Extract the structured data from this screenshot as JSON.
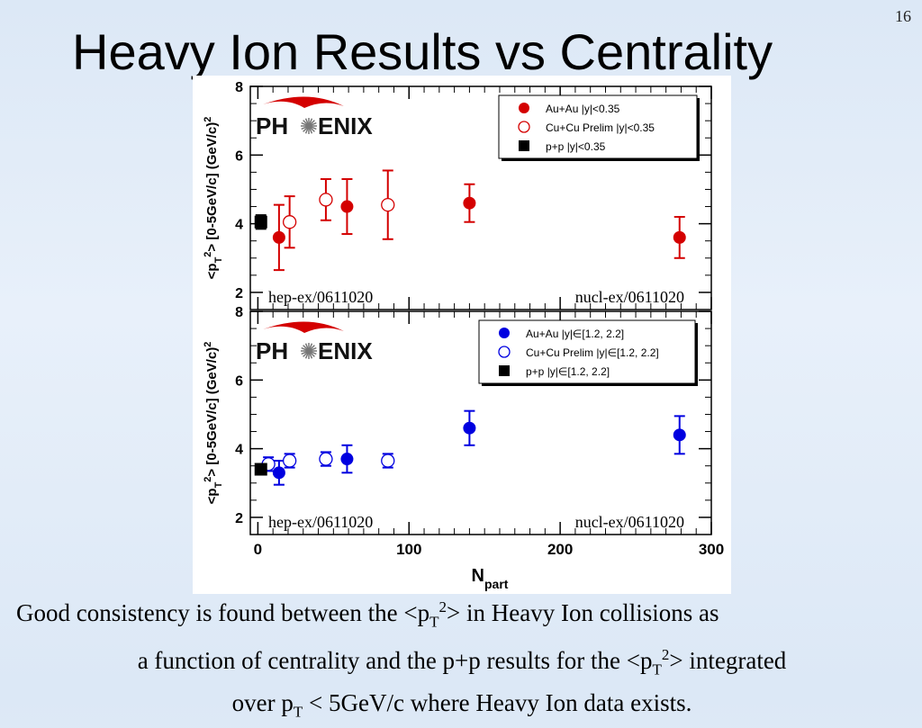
{
  "slide": {
    "number": "16",
    "title": "Heavy Ion Results vs Centrality",
    "caption": {
      "line1": "Good consistency is found between the <p",
      "line1_sub": "T",
      "line1_sup": "2",
      "line1_end": "> in Heavy Ion collisions as",
      "line2": "a function of centrality and the p+p results for the <p",
      "line2_sub": "T",
      "line2_sup": "2",
      "line2_end": "> integrated",
      "line3": "over p",
      "line3_sub": "T",
      "line3_end": " < 5GeV/c where Heavy Ion data exists."
    }
  },
  "chart_data": [
    {
      "type": "scatter",
      "logo": "PHENIX",
      "ylabel": "<p_T^2> [0-5GeV/c] (GeV/c)^2",
      "ylabel_main": "<p",
      "ylabel_sub": "T",
      "ylabel_sup": "2",
      "ylabel_end": "> [0-5GeV/c] (GeV/c)",
      "ylabel_sup2": "2",
      "xlim": [
        -5,
        300
      ],
      "ylim": [
        1.5,
        8
      ],
      "yticks": [
        2,
        4,
        6,
        8
      ],
      "references": [
        "hep-ex/0611020",
        "nucl-ex/0611020"
      ],
      "legend_position": "top-right",
      "series": [
        {
          "name": "Au+Au |y|<0.35",
          "marker": "filled-circle",
          "color": "#d40000",
          "points": [
            {
              "x": 14,
              "y": 3.6,
              "err": 0.95
            },
            {
              "x": 59,
              "y": 4.5,
              "err": 0.8
            },
            {
              "x": 140,
              "y": 4.6,
              "err": 0.55
            },
            {
              "x": 279,
              "y": 3.6,
              "err": 0.6
            }
          ]
        },
        {
          "name": "Cu+Cu Prelim |y|<0.35",
          "marker": "open-circle",
          "color": "#d40000",
          "points": [
            {
              "x": 21,
              "y": 4.05,
              "err": 0.75
            },
            {
              "x": 45,
              "y": 4.7,
              "err": 0.6
            },
            {
              "x": 86,
              "y": 4.55,
              "err": 1.0
            }
          ]
        },
        {
          "name": "p+p |y|<0.35",
          "marker": "filled-square",
          "color": "#000000",
          "points": [
            {
              "x": 2,
              "y": 4.05,
              "err": 0.2
            }
          ]
        }
      ]
    },
    {
      "type": "scatter",
      "logo": "PHENIX",
      "ylabel": "<p_T^2> [0-5GeV/c] (GeV/c)^2",
      "ylabel_main": "<p",
      "ylabel_sub": "T",
      "ylabel_sup": "2",
      "ylabel_end": "> [0-5GeV/c] (GeV/c)",
      "ylabel_sup2": "2",
      "xlabel": "N_part",
      "xlabel_main": "N",
      "xlabel_sub": "part",
      "xlim": [
        -5,
        300
      ],
      "ylim": [
        1.5,
        8
      ],
      "yticks": [
        2,
        4,
        6,
        8
      ],
      "xticks": [
        0,
        100,
        200,
        300
      ],
      "references": [
        "hep-ex/0611020",
        "nucl-ex/0611020"
      ],
      "legend_position": "top-right",
      "series": [
        {
          "name": "Au+Au |y|∈[1.2, 2.2]",
          "marker": "filled-circle",
          "color": "#0000e0",
          "points": [
            {
              "x": 14,
              "y": 3.3,
              "err": 0.35
            },
            {
              "x": 59,
              "y": 3.7,
              "err": 0.4
            },
            {
              "x": 140,
              "y": 4.6,
              "err": 0.5
            },
            {
              "x": 279,
              "y": 4.4,
              "err": 0.55
            }
          ]
        },
        {
          "name": "Cu+Cu Prelim |y|∈[1.2, 2.2]",
          "marker": "open-circle",
          "color": "#0000e0",
          "points": [
            {
              "x": 7,
              "y": 3.55,
              "err": 0.2
            },
            {
              "x": 21,
              "y": 3.65,
              "err": 0.2
            },
            {
              "x": 45,
              "y": 3.7,
              "err": 0.2
            },
            {
              "x": 86,
              "y": 3.65,
              "err": 0.2
            }
          ]
        },
        {
          "name": "p+p |y|∈[1.2, 2.2]",
          "marker": "filled-square",
          "color": "#000000",
          "points": [
            {
              "x": 2,
              "y": 3.4,
              "err": 0.1
            }
          ]
        }
      ]
    }
  ]
}
